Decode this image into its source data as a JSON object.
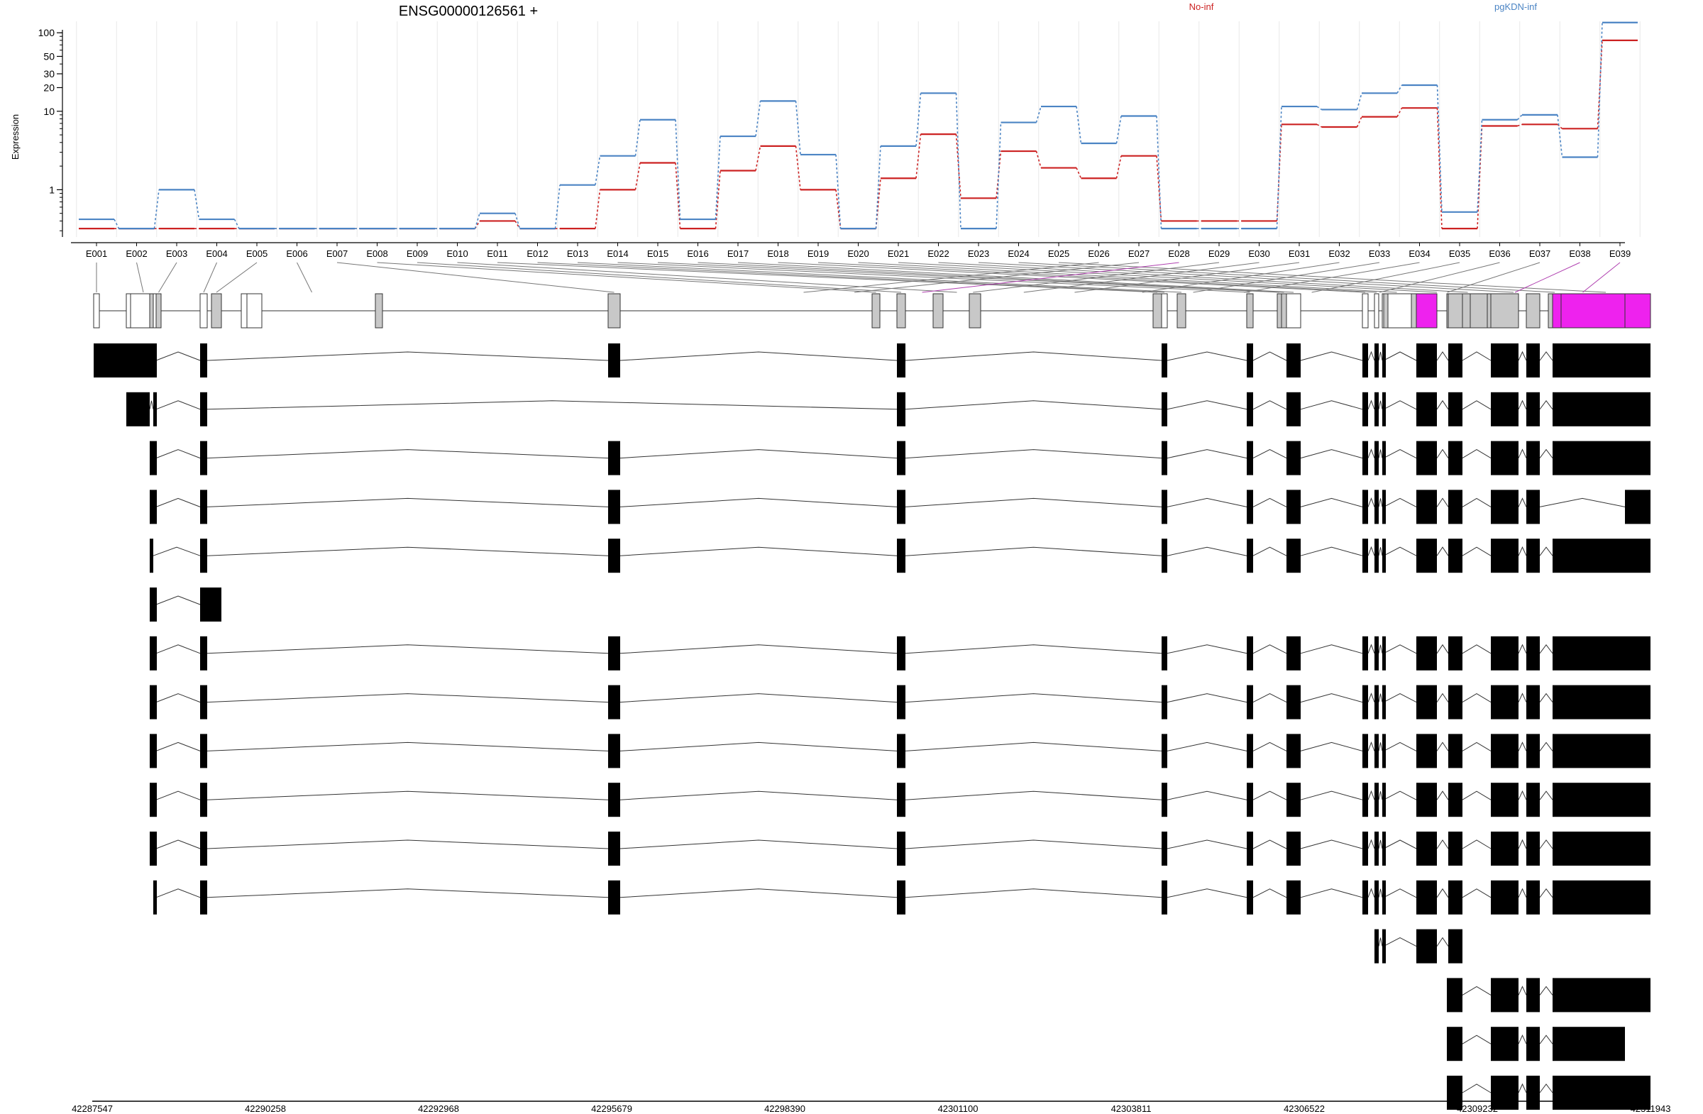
{
  "chart_data": {
    "type": "line",
    "title": "ENSG00000126561 +",
    "ylabel": "Expression",
    "yscale": "log",
    "yticks": [
      1,
      10,
      20,
      30,
      50,
      100
    ],
    "ylim": [
      0.25,
      140
    ],
    "legend": [
      "No-inf",
      "pgKDN-inf"
    ],
    "categories": [
      "E001",
      "E002",
      "E003",
      "E004",
      "E005",
      "E006",
      "E007",
      "E008",
      "E009",
      "E010",
      "E011",
      "E012",
      "E013",
      "E014",
      "E015",
      "E016",
      "E017",
      "E018",
      "E019",
      "E020",
      "E021",
      "E022",
      "E023",
      "E024",
      "E025",
      "E026",
      "E027",
      "E028",
      "E029",
      "E030",
      "E031",
      "E032",
      "E033",
      "E034",
      "E035",
      "E036",
      "E037",
      "E038",
      "E039"
    ],
    "series": [
      {
        "name": "No-inf",
        "color": "#cc2222",
        "values": [
          0.32,
          0.32,
          0.32,
          0.32,
          0.32,
          0.32,
          0.32,
          0.32,
          0.32,
          0.32,
          0.4,
          0.32,
          0.32,
          1.0,
          2.2,
          0.32,
          1.75,
          3.6,
          1.0,
          0.32,
          1.4,
          5.1,
          0.78,
          3.1,
          1.9,
          1.4,
          2.7,
          0.4,
          0.4,
          0.4,
          6.8,
          6.3,
          8.5,
          11.0,
          0.32,
          6.5,
          6.8,
          6.0,
          80
        ]
      },
      {
        "name": "pgKDN-inf",
        "color": "#4b84c4",
        "values": [
          0.42,
          0.32,
          1.0,
          0.42,
          0.32,
          0.32,
          0.32,
          0.32,
          0.32,
          0.32,
          0.5,
          0.32,
          1.15,
          2.7,
          7.8,
          0.42,
          4.8,
          13.5,
          2.8,
          0.32,
          3.6,
          17.0,
          0.32,
          7.2,
          11.5,
          3.9,
          8.7,
          0.32,
          0.32,
          0.32,
          11.5,
          10.5,
          17.0,
          21.5,
          0.52,
          7.8,
          9.0,
          2.6,
          135
        ]
      }
    ],
    "exon_ranges": [
      [
        0,
        1
      ],
      [
        2,
        5
      ],
      [
        5,
        6
      ],
      [
        6,
        7
      ],
      [
        7,
        8
      ],
      [
        8,
        11
      ],
      [
        11,
        12
      ],
      [
        12,
        13
      ],
      [
        13,
        14
      ],
      [
        14,
        16
      ],
      [
        16,
        17
      ],
      [
        17,
        18
      ],
      [
        18,
        19
      ],
      [
        19,
        20
      ],
      [
        20,
        21
      ],
      [
        21,
        22
      ],
      [
        22,
        23
      ],
      [
        23,
        24
      ],
      [
        24,
        25
      ],
      [
        25,
        28
      ],
      [
        28,
        31
      ],
      [
        31,
        34
      ],
      [
        34,
        37
      ],
      [
        37,
        39
      ],
      [
        39,
        42
      ],
      [
        42,
        45
      ],
      [
        45,
        49
      ],
      [
        49,
        52
      ],
      [
        52,
        55
      ],
      [
        55,
        58
      ],
      [
        58,
        62
      ],
      [
        62,
        65
      ],
      [
        65,
        68
      ],
      [
        68,
        72
      ],
      [
        72,
        76
      ],
      [
        76,
        80
      ],
      [
        80,
        84
      ],
      [
        84,
        88
      ],
      [
        88,
        92
      ]
    ],
    "gene_model": {
      "fills": [
        "w",
        "w",
        "w",
        "g",
        "w",
        "g",
        "w",
        "g",
        "w",
        "w",
        "g",
        "g",
        "g",
        "g",
        "g",
        "g",
        "g",
        "w",
        "g",
        "g",
        "g",
        "g",
        "w",
        "w",
        "w",
        "w",
        "g",
        "w",
        "g",
        "m",
        "g",
        "g",
        "g",
        "g",
        "g",
        "g",
        "g",
        "g",
        "m",
        "m",
        "m"
      ],
      "highlighted_exons": [
        "E028",
        "E038",
        "E039"
      ]
    },
    "transcripts": [
      [
        [
          0,
          2
        ],
        [
          2,
          3
        ],
        [
          3,
          4
        ],
        [
          4,
          5
        ],
        [
          6,
          7
        ],
        [
          11,
          12
        ],
        [
          13,
          14
        ],
        [
          17,
          18
        ],
        [
          19,
          20
        ],
        [
          22,
          23
        ],
        [
          23,
          24
        ],
        [
          24,
          25
        ],
        [
          25,
          26
        ],
        [
          29,
          30
        ],
        [
          31,
          32
        ],
        [
          35,
          36
        ],
        [
          36,
          37
        ],
        [
          38,
          40
        ],
        [
          40,
          41
        ]
      ],
      [
        [
          1,
          2
        ],
        [
          2,
          3
        ],
        [
          4,
          5
        ],
        [
          6,
          7
        ],
        [
          13,
          14
        ],
        [
          17,
          18
        ],
        [
          19,
          20
        ],
        [
          22,
          23
        ],
        [
          23,
          24
        ],
        [
          24,
          25
        ],
        [
          25,
          26
        ],
        [
          29,
          30
        ],
        [
          31,
          32
        ],
        [
          35,
          36
        ],
        [
          36,
          37
        ],
        [
          38,
          40
        ],
        [
          40,
          41
        ]
      ],
      [
        [
          3,
          4
        ],
        [
          4,
          5
        ],
        [
          6,
          7
        ],
        [
          11,
          12
        ],
        [
          13,
          14
        ],
        [
          17,
          18
        ],
        [
          19,
          20
        ],
        [
          22,
          23
        ],
        [
          23,
          24
        ],
        [
          24,
          25
        ],
        [
          25,
          26
        ],
        [
          29,
          30
        ],
        [
          31,
          32
        ],
        [
          35,
          36
        ],
        [
          36,
          37
        ],
        [
          38,
          40
        ],
        [
          40,
          41
        ]
      ],
      [
        [
          3,
          4
        ],
        [
          4,
          5
        ],
        [
          6,
          7
        ],
        [
          11,
          12
        ],
        [
          13,
          14
        ],
        [
          17,
          18
        ],
        [
          19,
          20
        ],
        [
          22,
          23
        ],
        [
          23,
          24
        ],
        [
          24,
          25
        ],
        [
          25,
          26
        ],
        [
          29,
          30
        ],
        [
          31,
          32
        ],
        [
          35,
          36
        ],
        [
          36,
          37
        ],
        [
          40,
          41
        ]
      ],
      [
        [
          3,
          4
        ],
        [
          6,
          7
        ],
        [
          11,
          12
        ],
        [
          13,
          14
        ],
        [
          17,
          18
        ],
        [
          19,
          20
        ],
        [
          22,
          23
        ],
        [
          23,
          24
        ],
        [
          24,
          25
        ],
        [
          25,
          26
        ],
        [
          29,
          30
        ],
        [
          31,
          32
        ],
        [
          35,
          36
        ],
        [
          36,
          37
        ],
        [
          38,
          40
        ],
        [
          40,
          41
        ]
      ],
      [
        [
          3,
          4
        ],
        [
          4,
          5
        ],
        [
          6,
          8
        ]
      ],
      [
        [
          3,
          4
        ],
        [
          4,
          5
        ],
        [
          6,
          7
        ],
        [
          11,
          12
        ],
        [
          13,
          14
        ],
        [
          17,
          18
        ],
        [
          19,
          20
        ],
        [
          22,
          23
        ],
        [
          23,
          24
        ],
        [
          24,
          25
        ],
        [
          25,
          26
        ],
        [
          29,
          30
        ],
        [
          31,
          32
        ],
        [
          35,
          36
        ],
        [
          36,
          37
        ],
        [
          38,
          40
        ],
        [
          40,
          41
        ]
      ],
      [
        [
          3,
          4
        ],
        [
          4,
          5
        ],
        [
          6,
          7
        ],
        [
          11,
          12
        ],
        [
          13,
          14
        ],
        [
          17,
          18
        ],
        [
          19,
          20
        ],
        [
          22,
          23
        ],
        [
          23,
          24
        ],
        [
          24,
          25
        ],
        [
          25,
          26
        ],
        [
          29,
          30
        ],
        [
          31,
          32
        ],
        [
          35,
          36
        ],
        [
          36,
          37
        ],
        [
          38,
          40
        ],
        [
          40,
          41
        ]
      ],
      [
        [
          3,
          4
        ],
        [
          4,
          5
        ],
        [
          6,
          7
        ],
        [
          11,
          12
        ],
        [
          13,
          14
        ],
        [
          17,
          18
        ],
        [
          19,
          20
        ],
        [
          22,
          23
        ],
        [
          23,
          24
        ],
        [
          24,
          25
        ],
        [
          25,
          26
        ],
        [
          29,
          30
        ],
        [
          31,
          32
        ],
        [
          35,
          36
        ],
        [
          36,
          37
        ],
        [
          38,
          40
        ],
        [
          40,
          41
        ]
      ],
      [
        [
          3,
          4
        ],
        [
          4,
          5
        ],
        [
          6,
          7
        ],
        [
          11,
          12
        ],
        [
          13,
          14
        ],
        [
          17,
          18
        ],
        [
          19,
          20
        ],
        [
          22,
          23
        ],
        [
          23,
          24
        ],
        [
          24,
          25
        ],
        [
          25,
          26
        ],
        [
          29,
          30
        ],
        [
          31,
          32
        ],
        [
          35,
          36
        ],
        [
          36,
          37
        ],
        [
          38,
          40
        ],
        [
          40,
          41
        ]
      ],
      [
        [
          3,
          4
        ],
        [
          4,
          5
        ],
        [
          6,
          7
        ],
        [
          11,
          12
        ],
        [
          13,
          14
        ],
        [
          17,
          18
        ],
        [
          19,
          20
        ],
        [
          22,
          23
        ],
        [
          23,
          24
        ],
        [
          24,
          25
        ],
        [
          25,
          26
        ],
        [
          29,
          30
        ],
        [
          31,
          32
        ],
        [
          35,
          36
        ],
        [
          36,
          37
        ],
        [
          38,
          40
        ],
        [
          40,
          41
        ]
      ],
      [
        [
          4,
          5
        ],
        [
          6,
          7
        ],
        [
          11,
          12
        ],
        [
          13,
          14
        ],
        [
          17,
          18
        ],
        [
          19,
          20
        ],
        [
          22,
          23
        ],
        [
          23,
          24
        ],
        [
          24,
          25
        ],
        [
          25,
          26
        ],
        [
          29,
          30
        ],
        [
          31,
          32
        ],
        [
          35,
          36
        ],
        [
          36,
          37
        ],
        [
          38,
          40
        ],
        [
          40,
          41
        ]
      ],
      [
        [
          24,
          25
        ],
        [
          25,
          26
        ],
        [
          29,
          30
        ],
        [
          31,
          32
        ]
      ],
      [
        [
          30,
          32
        ],
        [
          35,
          36
        ],
        [
          36,
          37
        ],
        [
          38,
          40
        ],
        [
          40,
          41
        ]
      ],
      [
        [
          30,
          32
        ],
        [
          35,
          36
        ],
        [
          36,
          37
        ],
        [
          38,
          40
        ]
      ],
      [
        [
          30,
          32
        ],
        [
          35,
          36
        ],
        [
          36,
          37
        ],
        [
          38,
          40
        ],
        [
          40,
          41
        ]
      ]
    ],
    "coordinate_axis": {
      "tick_labels": [
        "42287547",
        "42290258",
        "42292968",
        "42295679",
        "42298390",
        "42301100",
        "42303811",
        "42306522",
        "42309232",
        "42311943"
      ]
    }
  }
}
